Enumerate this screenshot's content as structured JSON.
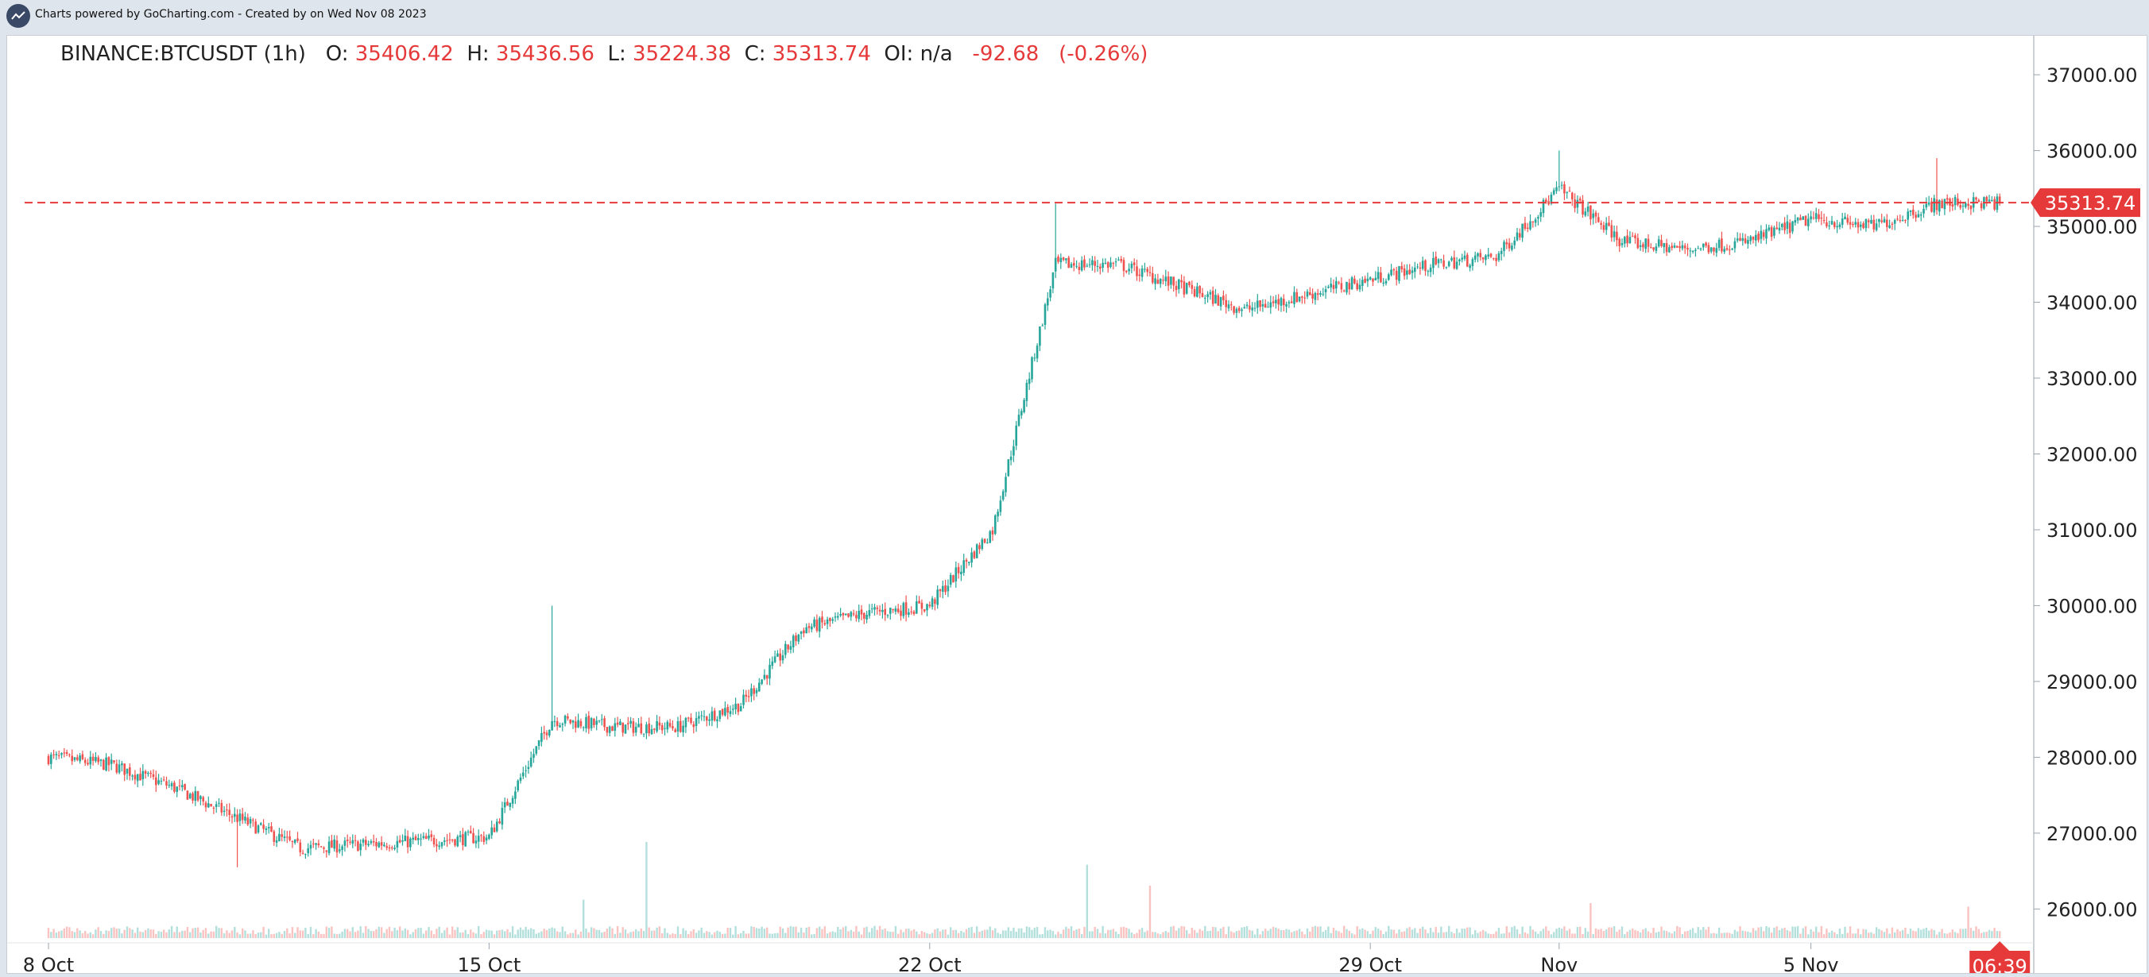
{
  "header": {
    "credit": "Charts powered by GoCharting.com - Created by  on Wed Nov 08 2023"
  },
  "legend": {
    "symbol": "BINANCE:BTCUSDT (1h)",
    "open_label": "O:",
    "open": "35406.42",
    "high_label": "H:",
    "high": "35436.56",
    "low_label": "L:",
    "low": "35224.38",
    "close_label": "C:",
    "close": "35313.74",
    "oi_label": "OI:",
    "oi": "n/a",
    "change": "-92.68",
    "change_pct": "(-0.26%)"
  },
  "colors": {
    "up": "#26a69a",
    "down": "#ef5350",
    "last_price": "#e5393a",
    "grid": "#eeeeee"
  },
  "chart_data": {
    "type": "candlestick",
    "symbol": "BINANCE:BTCUSDT",
    "interval": "1h",
    "x_tick_labels": [
      "8 Oct",
      "15 Oct",
      "22 Oct",
      "29 Oct",
      "Nov",
      "5 Nov"
    ],
    "x_start": "2023-10-08",
    "x_end": "2023-11-08",
    "y_ticks": [
      26000,
      27000,
      28000,
      29000,
      30000,
      31000,
      32000,
      33000,
      34000,
      35000,
      36000,
      37000
    ],
    "y_tick_labels": [
      "26000.00",
      "27000.00",
      "28000.00",
      "29000.00",
      "30000.00",
      "31000.00",
      "32000.00",
      "33000.00",
      "34000.00",
      "35000.00",
      "36000.00",
      "37000.00"
    ],
    "ylim": [
      25700,
      37200
    ],
    "last_price": 35313.74,
    "last_price_label": "35313.74",
    "time_label": "06:39",
    "close_path": [
      {
        "x": "2023-10-08",
        "y": 28000
      },
      {
        "x": "2023-10-09",
        "y": 27900
      },
      {
        "x": "2023-10-10",
        "y": 27600
      },
      {
        "x": "2023-10-11",
        "y": 27200
      },
      {
        "x": "2023-10-12",
        "y": 26800
      },
      {
        "x": "2023-10-13",
        "y": 26850
      },
      {
        "x": "2023-10-14",
        "y": 26900
      },
      {
        "x": "2023-10-15",
        "y": 26950
      },
      {
        "x": "2023-10-16",
        "y": 28500
      },
      {
        "x": "2023-10-17",
        "y": 28400
      },
      {
        "x": "2023-10-18",
        "y": 28400
      },
      {
        "x": "2023-10-19",
        "y": 28700
      },
      {
        "x": "2023-10-20",
        "y": 29700
      },
      {
        "x": "2023-10-21",
        "y": 29900
      },
      {
        "x": "2023-10-22",
        "y": 30000
      },
      {
        "x": "2023-10-23",
        "y": 31000
      },
      {
        "x": "2023-10-24",
        "y": 34500
      },
      {
        "x": "2023-10-25",
        "y": 34500
      },
      {
        "x": "2023-10-26",
        "y": 34200
      },
      {
        "x": "2023-10-27",
        "y": 33900
      },
      {
        "x": "2023-10-28",
        "y": 34100
      },
      {
        "x": "2023-10-29",
        "y": 34300
      },
      {
        "x": "2023-10-30",
        "y": 34500
      },
      {
        "x": "2023-10-31",
        "y": 34600
      },
      {
        "x": "2023-11-01",
        "y": 35500
      },
      {
        "x": "2023-11-02",
        "y": 34800
      },
      {
        "x": "2023-11-03",
        "y": 34700
      },
      {
        "x": "2023-11-04",
        "y": 34800
      },
      {
        "x": "2023-11-05",
        "y": 35100
      },
      {
        "x": "2023-11-06",
        "y": 35000
      },
      {
        "x": "2023-11-07",
        "y": 35300
      },
      {
        "x": "2023-11-08",
        "y": 35313.74
      }
    ],
    "extremes": [
      {
        "x": "2023-10-11",
        "y": 26550,
        "kind": "low"
      },
      {
        "x": "2023-10-16",
        "y": 30000,
        "kind": "high"
      },
      {
        "x": "2023-10-24",
        "y": 35300,
        "kind": "high"
      },
      {
        "x": "2023-11-01",
        "y": 36000,
        "kind": "high"
      },
      {
        "x": "2023-11-07",
        "y": 35900,
        "kind": "high"
      }
    ],
    "volume_spikes": [
      {
        "x": "2023-10-16",
        "level": 0.22
      },
      {
        "x": "2023-10-17",
        "level": 0.55
      },
      {
        "x": "2023-10-24",
        "level": 0.42
      },
      {
        "x": "2023-10-25",
        "level": 0.3
      },
      {
        "x": "2023-11-01",
        "level": 0.2
      },
      {
        "x": "2023-11-07",
        "level": 0.18
      }
    ],
    "grid": false
  }
}
